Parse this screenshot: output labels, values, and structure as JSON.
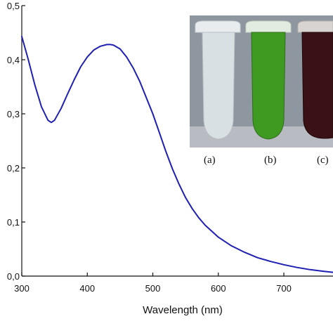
{
  "chart_data": {
    "type": "line",
    "xlabel": "Wavelength (nm)",
    "ylabel": "",
    "xlim": [
      300,
      775
    ],
    "ylim": [
      0,
      0.5
    ],
    "xticks": [
      300,
      400,
      500,
      600,
      700
    ],
    "xtick_labels": [
      "300",
      "400",
      "500",
      "600",
      "700"
    ],
    "yticks": [
      0.0,
      0.1,
      0.2,
      0.3,
      0.4,
      0.5
    ],
    "ytick_labels": [
      "0,0",
      "0,1",
      "0,2",
      "0,3",
      "0,4",
      "0,5"
    ],
    "grid": false,
    "series": [
      {
        "color": "#1f1fb4",
        "x": [
          300,
          310,
          320,
          330,
          340,
          345,
          350,
          360,
          370,
          380,
          390,
          400,
          410,
          420,
          430,
          435,
          440,
          450,
          460,
          470,
          480,
          490,
          500,
          510,
          520,
          530,
          540,
          550,
          560,
          570,
          580,
          600,
          620,
          640,
          660,
          680,
          700,
          720,
          740,
          760,
          775
        ],
        "y": [
          0.443,
          0.4,
          0.353,
          0.313,
          0.288,
          0.284,
          0.288,
          0.31,
          0.337,
          0.363,
          0.387,
          0.405,
          0.418,
          0.425,
          0.428,
          0.428,
          0.427,
          0.42,
          0.405,
          0.385,
          0.36,
          0.33,
          0.3,
          0.265,
          0.23,
          0.198,
          0.17,
          0.145,
          0.125,
          0.108,
          0.094,
          0.072,
          0.056,
          0.044,
          0.034,
          0.027,
          0.021,
          0.016,
          0.012,
          0.009,
          0.007
        ]
      }
    ]
  },
  "inset": {
    "captions": [
      "(a)",
      "(b)",
      "(c)"
    ],
    "tube_colors": [
      "#d9e0e4",
      "#3f9a22",
      "#3a1216"
    ]
  }
}
